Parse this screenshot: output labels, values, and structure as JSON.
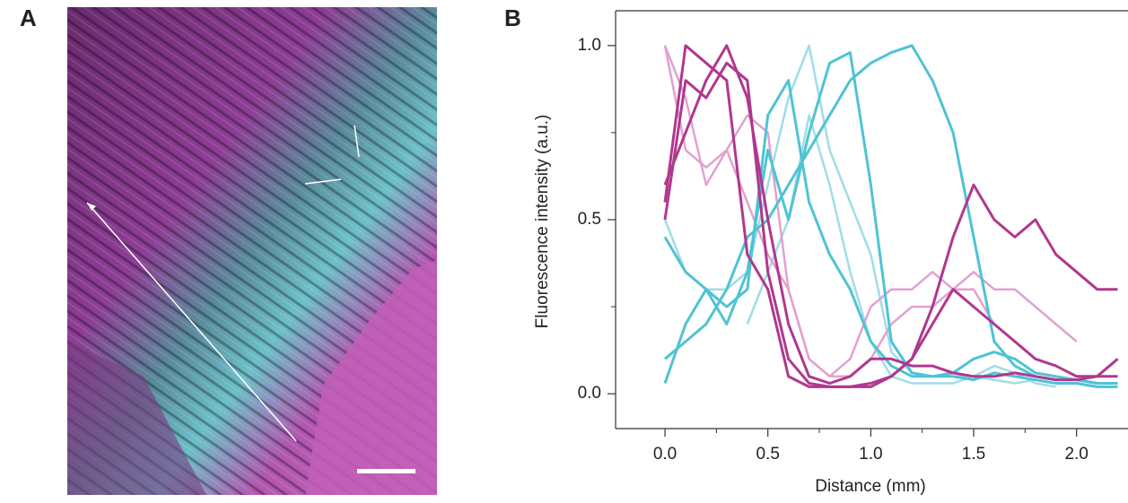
{
  "panel_labels": {
    "a": "A",
    "b": "B"
  },
  "chart_data": {
    "type": "line",
    "xlabel": "Distance (mm)",
    "ylabel": "Fluorescence intensity (a.u.)",
    "xlim": [
      -0.24,
      2.25
    ],
    "ylim": [
      -0.1,
      1.1
    ],
    "xticks": [
      {
        "value": 0,
        "label": "0.0"
      },
      {
        "value": 0.5,
        "label": "0.5"
      },
      {
        "value": 1,
        "label": "1.0"
      },
      {
        "value": 1.5,
        "label": "1.5"
      },
      {
        "value": 2,
        "label": "2.0"
      }
    ],
    "xminorticks": [
      0.25,
      0.75,
      1.25,
      1.75
    ],
    "yticks": [
      {
        "value": 0,
        "label": "0.0"
      },
      {
        "value": 0.5,
        "label": "0.5"
      },
      {
        "value": 1,
        "label": "1.0"
      }
    ],
    "yminorticks": [
      0.25,
      0.75
    ],
    "x": [
      0,
      0.1,
      0.2,
      0.3,
      0.4,
      0.5,
      0.6,
      0.7,
      0.8,
      0.9,
      1.0,
      1.1,
      1.2,
      1.3,
      1.4,
      1.5,
      1.6,
      1.7,
      1.8,
      1.9,
      2.0,
      2.1,
      2.2
    ],
    "series": [
      {
        "color": "#9fdde8",
        "width": 2.5,
        "values": [
          0.5,
          0.35,
          0.3,
          0.3,
          0.35,
          0.6,
          0.85,
          1.0,
          0.7,
          0.55,
          0.4,
          0.12,
          0.06,
          0.05,
          0.05,
          0.05,
          0.04,
          0.03,
          0.04,
          0.03,
          null,
          null,
          null
        ]
      },
      {
        "color": "#9fdde8",
        "width": 2.5,
        "values": [
          null,
          null,
          null,
          null,
          0.2,
          0.35,
          0.5,
          0.8,
          0.6,
          0.35,
          0.15,
          0.05,
          0.03,
          0.03,
          0.03,
          0.05,
          0.08,
          0.06,
          0.03,
          0.02,
          null,
          null,
          null
        ]
      },
      {
        "color": "#e3a0d0",
        "width": 2.5,
        "values": [
          1.0,
          0.7,
          0.65,
          0.7,
          0.8,
          0.75,
          0.3,
          0.1,
          0.05,
          0.1,
          0.25,
          0.3,
          0.3,
          0.35,
          0.3,
          0.35,
          0.3,
          0.3,
          0.25,
          0.2,
          0.15,
          null,
          null
        ]
      },
      {
        "color": "#e3a0d0",
        "width": 2.5,
        "values": [
          1.0,
          0.85,
          0.6,
          0.7,
          0.55,
          0.4,
          0.3,
          0.1,
          0.05,
          0.05,
          0.1,
          0.2,
          0.25,
          0.25,
          0.3,
          0.3,
          0.2,
          0.15,
          0.1,
          0.08,
          0.05,
          null,
          null
        ]
      },
      {
        "color": "#4fc3d4",
        "width": 3,
        "values": [
          0.1,
          0.15,
          0.2,
          0.3,
          0.45,
          0.5,
          0.6,
          0.7,
          0.8,
          0.9,
          0.95,
          0.98,
          1.0,
          0.9,
          0.75,
          0.45,
          0.15,
          0.08,
          0.05,
          0.04,
          0.04,
          0.03,
          0.03
        ]
      },
      {
        "color": "#4fc3d4",
        "width": 3,
        "values": [
          0.03,
          0.2,
          0.3,
          0.2,
          0.35,
          0.7,
          0.5,
          0.75,
          0.95,
          0.98,
          0.6,
          0.15,
          0.06,
          0.05,
          0.05,
          0.04,
          0.06,
          0.05,
          0.04,
          0.03,
          0.03,
          0.02,
          0.02
        ]
      },
      {
        "color": "#4fc3d4",
        "width": 3,
        "values": [
          0.45,
          0.35,
          0.3,
          0.25,
          0.3,
          0.8,
          0.9,
          0.55,
          0.4,
          0.3,
          0.15,
          0.08,
          0.05,
          0.05,
          0.06,
          0.1,
          0.12,
          0.1,
          0.06,
          0.05,
          0.04,
          0.03,
          null
        ]
      },
      {
        "color": "#b0388f",
        "width": 3,
        "values": [
          0.55,
          1.0,
          0.95,
          0.9,
          0.4,
          0.3,
          0.05,
          0.02,
          0.02,
          0.02,
          0.02,
          0.05,
          0.1,
          0.25,
          0.45,
          0.6,
          0.5,
          0.45,
          0.5,
          0.4,
          0.35,
          0.3,
          0.3
        ]
      },
      {
        "color": "#b0388f",
        "width": 3,
        "values": [
          0.5,
          0.9,
          0.85,
          0.95,
          0.9,
          0.35,
          0.1,
          0.03,
          0.02,
          0.02,
          0.03,
          0.05,
          0.1,
          0.2,
          0.3,
          0.25,
          0.2,
          0.15,
          0.1,
          0.08,
          0.05,
          0.05,
          0.1
        ]
      },
      {
        "color": "#b0388f",
        "width": 3,
        "values": [
          0.6,
          0.75,
          0.9,
          1.0,
          0.85,
          0.5,
          0.2,
          0.05,
          0.03,
          0.05,
          0.1,
          0.1,
          0.08,
          0.08,
          0.06,
          0.05,
          0.05,
          0.06,
          0.05,
          0.04,
          0.04,
          0.05,
          0.05
        ]
      }
    ]
  }
}
